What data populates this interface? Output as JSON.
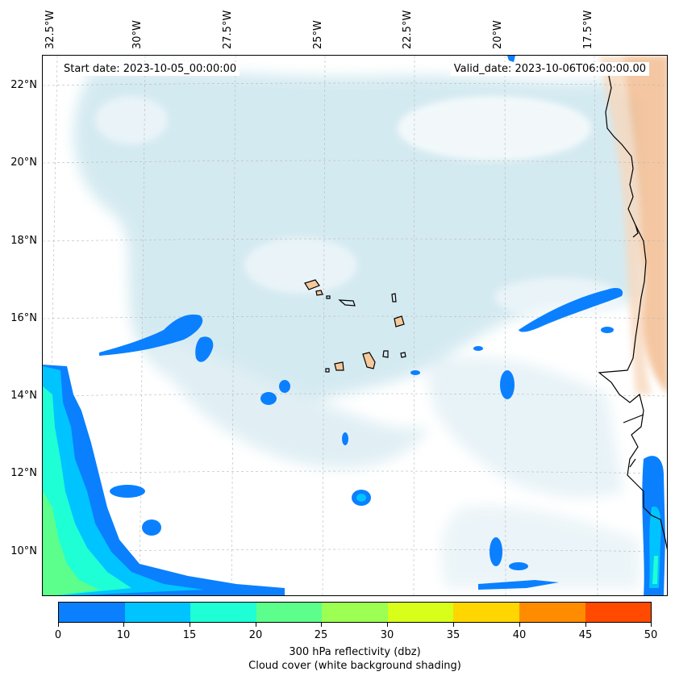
{
  "header": {
    "start_date": "Start date: 2023-10-05_00:00:00",
    "valid_date": "Valid_date: 2023-10-06T06:00:00.00"
  },
  "axes": {
    "lon_ticks": [
      "32.5°W",
      "30°W",
      "27.5°W",
      "25°W",
      "22.5°W",
      "20°W",
      "17.5°W"
    ],
    "lat_ticks": [
      "22°N",
      "20°N",
      "18°N",
      "16°N",
      "14°N",
      "12°N",
      "10°N"
    ]
  },
  "colorbar": {
    "tick_labels": [
      "0",
      "10",
      "15",
      "20",
      "25",
      "30",
      "35",
      "40",
      "45",
      "50"
    ],
    "colors": [
      "#0a80ff",
      "#00c4ff",
      "#1effd6",
      "#5cff8c",
      "#9cff52",
      "#d8ff1a",
      "#ffd600",
      "#ff8c00",
      "#ff4a00"
    ],
    "label_line1": "300 hPa reflectivity (dbz)",
    "label_line2": "Cloud cover (white background shading)"
  },
  "colors": {
    "cloud_shading": "#cde7ef",
    "land_fill": "#f5c99a",
    "coast_line": "#000000",
    "reflectivity_low": "#0a80ff",
    "reflectivity_mid": "#00c4ff",
    "reflectivity_high": "#1effd6"
  }
}
